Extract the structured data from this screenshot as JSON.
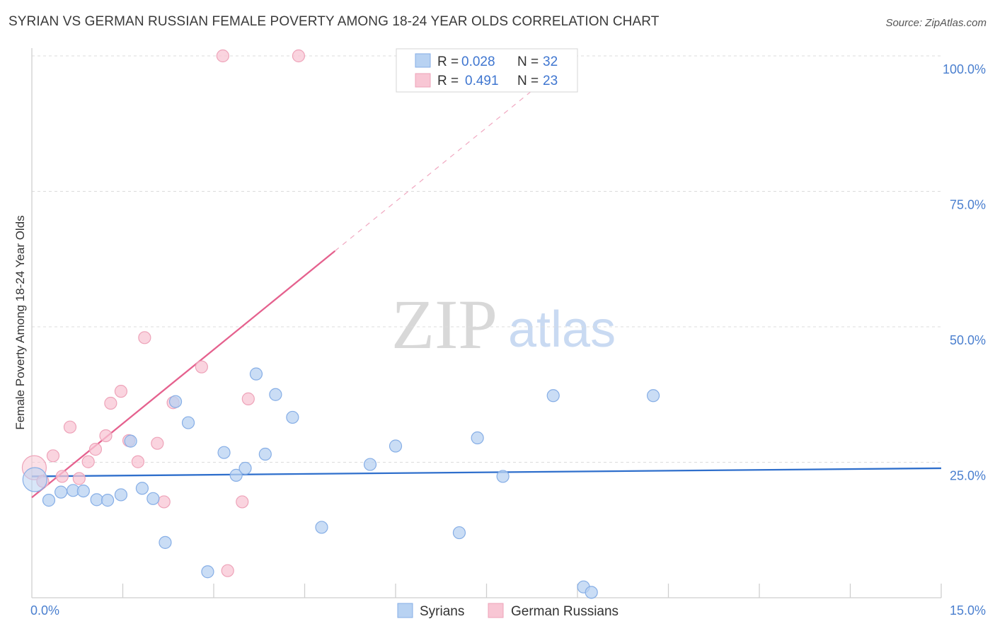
{
  "title": "SYRIAN VS GERMAN RUSSIAN FEMALE POVERTY AMONG 18-24 YEAR OLDS CORRELATION CHART",
  "source": "Source: ZipAtlas.com",
  "watermark": {
    "zip": "ZIP",
    "atlas": "atlas"
  },
  "legend_top": [
    {
      "r_label": "R =",
      "r_value": "0.028",
      "n_label": "N =",
      "n_value": "32"
    },
    {
      "r_label": "R =",
      "r_value": "0.491",
      "n_label": "N =",
      "n_value": "23"
    }
  ],
  "legend_bottom": [
    "Syrians",
    "German Russians"
  ],
  "colors": {
    "syrians_fill": "#b8d2f2",
    "syrians_stroke": "#86aee6",
    "syrians_line": "#2f6fcc",
    "german_fill": "#f8c6d4",
    "german_stroke": "#eea3b9",
    "german_line": "#e5618e",
    "tick_text": "#4a7fcf",
    "grid": "#dcdcdc"
  },
  "chart_data": {
    "type": "scatter",
    "title": "SYRIAN VS GERMAN RUSSIAN FEMALE POVERTY AMONG 18-24 YEAR OLDS CORRELATION CHART",
    "xlabel": "",
    "ylabel": "Female Poverty Among 18-24 Year Olds",
    "xlim": [
      0,
      15
    ],
    "ylim": [
      0,
      100
    ],
    "x_tick_labels": [
      {
        "value": 0,
        "label": "0.0%"
      },
      {
        "value": 15,
        "label": "15.0%"
      }
    ],
    "y_tick_labels": [
      {
        "value": 100,
        "label": "100.0%"
      },
      {
        "value": 75,
        "label": "75.0%"
      },
      {
        "value": 50,
        "label": "50.0%"
      },
      {
        "value": 25,
        "label": "25.0%"
      }
    ],
    "series": [
      {
        "name": "Syrians",
        "R": 0.028,
        "N": 32,
        "trend": {
          "x0": 0,
          "y0": 22.4,
          "x1": 15,
          "y1": 23.9
        },
        "points": [
          {
            "x": 0.05,
            "y": 21.8,
            "big": true
          },
          {
            "x": 0.28,
            "y": 18.0
          },
          {
            "x": 0.48,
            "y": 19.5
          },
          {
            "x": 0.68,
            "y": 19.8
          },
          {
            "x": 0.85,
            "y": 19.7
          },
          {
            "x": 1.07,
            "y": 18.1
          },
          {
            "x": 1.25,
            "y": 18.0
          },
          {
            "x": 1.47,
            "y": 19.0
          },
          {
            "x": 1.63,
            "y": 28.9
          },
          {
            "x": 1.82,
            "y": 20.2
          },
          {
            "x": 2.0,
            "y": 18.3
          },
          {
            "x": 2.2,
            "y": 10.2
          },
          {
            "x": 2.37,
            "y": 36.2
          },
          {
            "x": 2.58,
            "y": 32.3
          },
          {
            "x": 2.9,
            "y": 4.8
          },
          {
            "x": 3.17,
            "y": 26.8
          },
          {
            "x": 3.37,
            "y": 22.6
          },
          {
            "x": 3.52,
            "y": 23.9
          },
          {
            "x": 3.7,
            "y": 41.3
          },
          {
            "x": 3.85,
            "y": 26.5
          },
          {
            "x": 4.02,
            "y": 37.5
          },
          {
            "x": 4.3,
            "y": 33.3
          },
          {
            "x": 4.78,
            "y": 13.0
          },
          {
            "x": 5.58,
            "y": 24.6
          },
          {
            "x": 6.0,
            "y": 28.0
          },
          {
            "x": 7.05,
            "y": 12.0
          },
          {
            "x": 7.35,
            "y": 29.5
          },
          {
            "x": 7.77,
            "y": 22.4
          },
          {
            "x": 8.6,
            "y": 37.3
          },
          {
            "x": 9.1,
            "y": 2.0
          },
          {
            "x": 9.23,
            "y": 1.0
          },
          {
            "x": 10.25,
            "y": 37.3
          }
        ]
      },
      {
        "name": "German Russians",
        "R": 0.491,
        "N": 23,
        "trend": {
          "x0": 0,
          "y0": 18.5,
          "x1": 5.0,
          "y1": 64.0,
          "dash_to_x": 8.4
        },
        "points": [
          {
            "x": 0.04,
            "y": 24.0,
            "big": true
          },
          {
            "x": 0.18,
            "y": 21.5
          },
          {
            "x": 0.35,
            "y": 26.2
          },
          {
            "x": 0.5,
            "y": 22.4
          },
          {
            "x": 0.63,
            "y": 31.5
          },
          {
            "x": 0.78,
            "y": 22.0
          },
          {
            "x": 0.93,
            "y": 25.1
          },
          {
            "x": 1.05,
            "y": 27.4
          },
          {
            "x": 1.22,
            "y": 29.9
          },
          {
            "x": 1.3,
            "y": 35.9
          },
          {
            "x": 1.47,
            "y": 38.1
          },
          {
            "x": 1.6,
            "y": 29.0
          },
          {
            "x": 1.75,
            "y": 25.1
          },
          {
            "x": 1.86,
            "y": 48.0
          },
          {
            "x": 2.07,
            "y": 28.5
          },
          {
            "x": 2.18,
            "y": 17.7
          },
          {
            "x": 2.33,
            "y": 36.0
          },
          {
            "x": 2.8,
            "y": 42.6
          },
          {
            "x": 3.15,
            "y": 100.0
          },
          {
            "x": 3.23,
            "y": 5.0
          },
          {
            "x": 3.47,
            "y": 17.7
          },
          {
            "x": 3.57,
            "y": 36.7
          },
          {
            "x": 4.4,
            "y": 100.0
          }
        ]
      }
    ]
  }
}
